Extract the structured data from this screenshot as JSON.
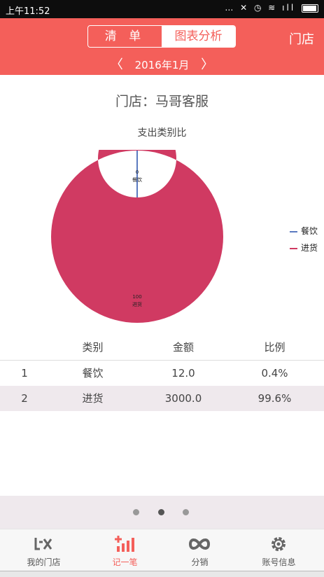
{
  "status_bar": {
    "time": "上午11:52",
    "icons": "… ✕ ◷ ≋ ıll"
  },
  "header": {
    "segments": [
      "清 单",
      "图表分析"
    ],
    "active_segment": "图表分析",
    "store_button": "门店",
    "month": "2016年1月",
    "prev_icon": "chevron-left-icon",
    "next_icon": "chevron-right-icon"
  },
  "store_title": "门店：马哥客服",
  "chart_title": "支出类别比",
  "chart_data": {
    "type": "pie",
    "title": "支出类别比",
    "donut": true,
    "slices": [
      {
        "label": "餐饮",
        "value": 0,
        "color": "#5b7ac0"
      },
      {
        "label": "进货",
        "value": 100,
        "color": "#d03a62"
      }
    ],
    "slice_labels": [
      "0",
      "100"
    ],
    "legend": [
      "餐饮",
      "进货"
    ],
    "legend_position": "right"
  },
  "table": {
    "headers": [
      "",
      "类别",
      "金额",
      "比例"
    ],
    "rows": [
      [
        "1",
        "餐饮",
        "12.0",
        "0.4%"
      ],
      [
        "2",
        "进货",
        "3000.0",
        "99.6%"
      ]
    ]
  },
  "pager": {
    "count": 3,
    "active_index": 1
  },
  "tabs": [
    {
      "label": "我的门店",
      "icon": "store-icon",
      "active": false
    },
    {
      "label": "记一笔",
      "icon": "record-icon",
      "active": true
    },
    {
      "label": "分销",
      "icon": "distribution-icon",
      "active": false
    },
    {
      "label": "账号信息",
      "icon": "settings-gear-icon",
      "active": false
    }
  ],
  "colors": {
    "brand": "#f45f5a",
    "donut": "#d03a62",
    "slice_small": "#5b7ac0",
    "row_alt": "#efe9ed"
  }
}
